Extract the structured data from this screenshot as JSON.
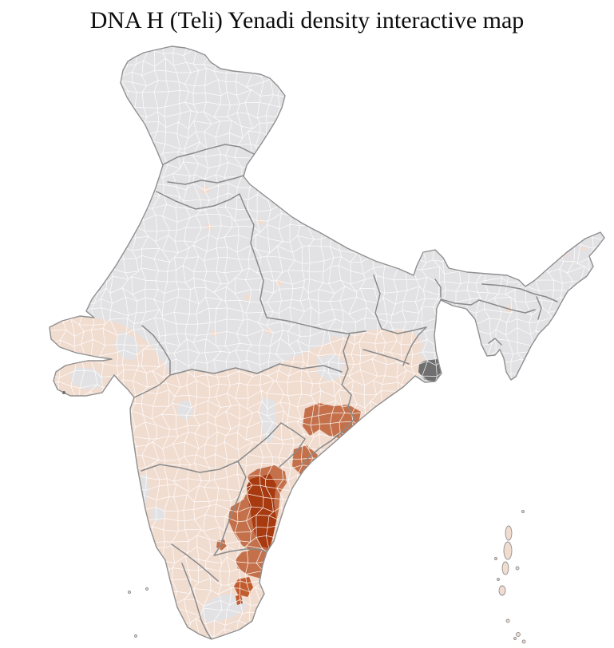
{
  "title": "DNA H (Teli) Yenadi density interactive map",
  "map": {
    "name": "india-district-density-choropleth",
    "background_color": "#ffffff",
    "coast_border_color": "#8f8f8f",
    "state_border_color": "#8a8a8a",
    "district_border_color": "#ffffff",
    "density_colors": {
      "no_data": "#e2e2e4",
      "low": "#f1dcd0",
      "medium": "#c4714b",
      "medium_high": "#c25c2e",
      "high": "#a83a10",
      "dark_gray": "#6f6f6f"
    },
    "regions": {
      "india-mainland": "no_data",
      "peninsular-south": "low",
      "saurashtra-interior": "no_data",
      "central-gujarat-interior": "no_data",
      "chhattisgarh-interior": "no_data",
      "marathwada-interior": "no_data",
      "telangana-interior": "no_data",
      "karnataka-coast-strip": "no_data",
      "karnataka-interior": "no_data",
      "tamilnadu-interior": "no_data",
      "odisha-coastal-cluster": "medium",
      "srikakulam-coast": "medium",
      "nellore-ring": "medium",
      "ap-coast-high-strip": "high",
      "tn-northeast-cluster": "medium",
      "rayalaseema-speck": "medium",
      "tn-central-bright": "medium_high",
      "tn-central-bright-south": "medium_high",
      "delhi-spot": "low",
      "south-delhi-spot": "low",
      "west-up-spot": "low",
      "bundelkhand-spot": "low",
      "north-mp-spot": "low",
      "west-mp-spot": "low",
      "central-mp-spot": "low",
      "east-mp-spot": "low",
      "west-bengal-spot": "low",
      "upper-assam-spot": "low",
      "central-assam-spot": "low",
      "lower-assam-spot": "low",
      "tripura-spot": "low",
      "arunachal-east-spot": "low",
      "sundarbans-delta": "dark_gray",
      "diu-spot": "dark_gray",
      "andaman-islands": "low",
      "nicobar-islands": "low",
      "lakshadweep-islands": "no_data"
    }
  }
}
